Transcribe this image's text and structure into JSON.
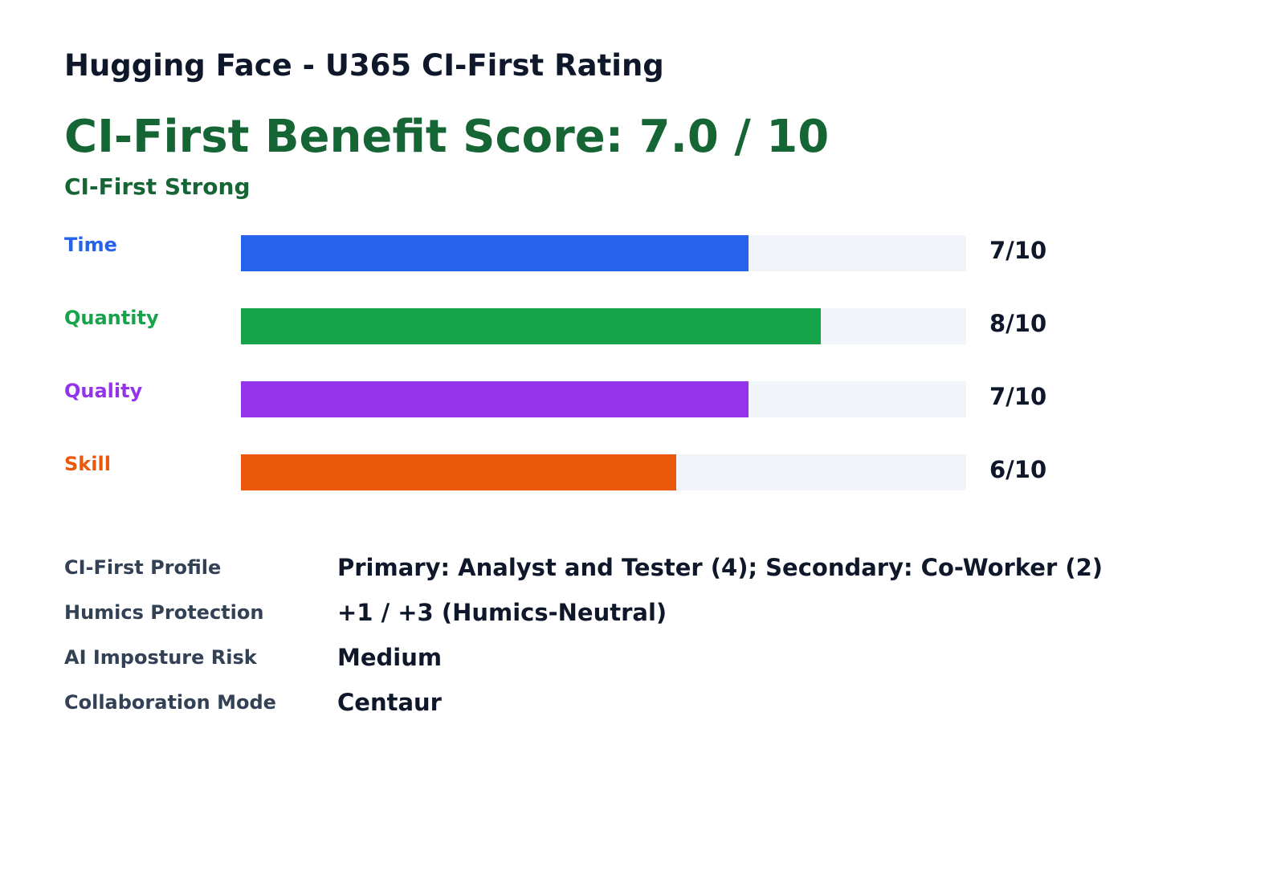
{
  "title": "Hugging Face - U365 CI-First Rating",
  "score": {
    "headline": "CI-First Benefit Score: 7.0 / 10",
    "subtitle": "CI-First Strong",
    "color": "#166534"
  },
  "chart_data": {
    "type": "bar",
    "orientation": "horizontal",
    "categories": [
      "Time",
      "Quantity",
      "Quality",
      "Skill"
    ],
    "values": [
      7,
      8,
      7,
      6
    ],
    "max": 10,
    "value_labels": [
      "7/10",
      "8/10",
      "7/10",
      "6/10"
    ],
    "colors": [
      "#2563eb",
      "#16a34a",
      "#9333ea",
      "#ea580c"
    ],
    "track_color": "#f1f5f9"
  },
  "details": [
    {
      "label": "CI-First Profile",
      "value": "Primary: Analyst and Tester (4); Secondary: Co-Worker (2)"
    },
    {
      "label": "Humics Protection",
      "value": "+1 / +3  (Humics-Neutral)"
    },
    {
      "label": "AI Imposture Risk",
      "value": "Medium"
    },
    {
      "label": "Collaboration Mode",
      "value": "Centaur"
    }
  ]
}
